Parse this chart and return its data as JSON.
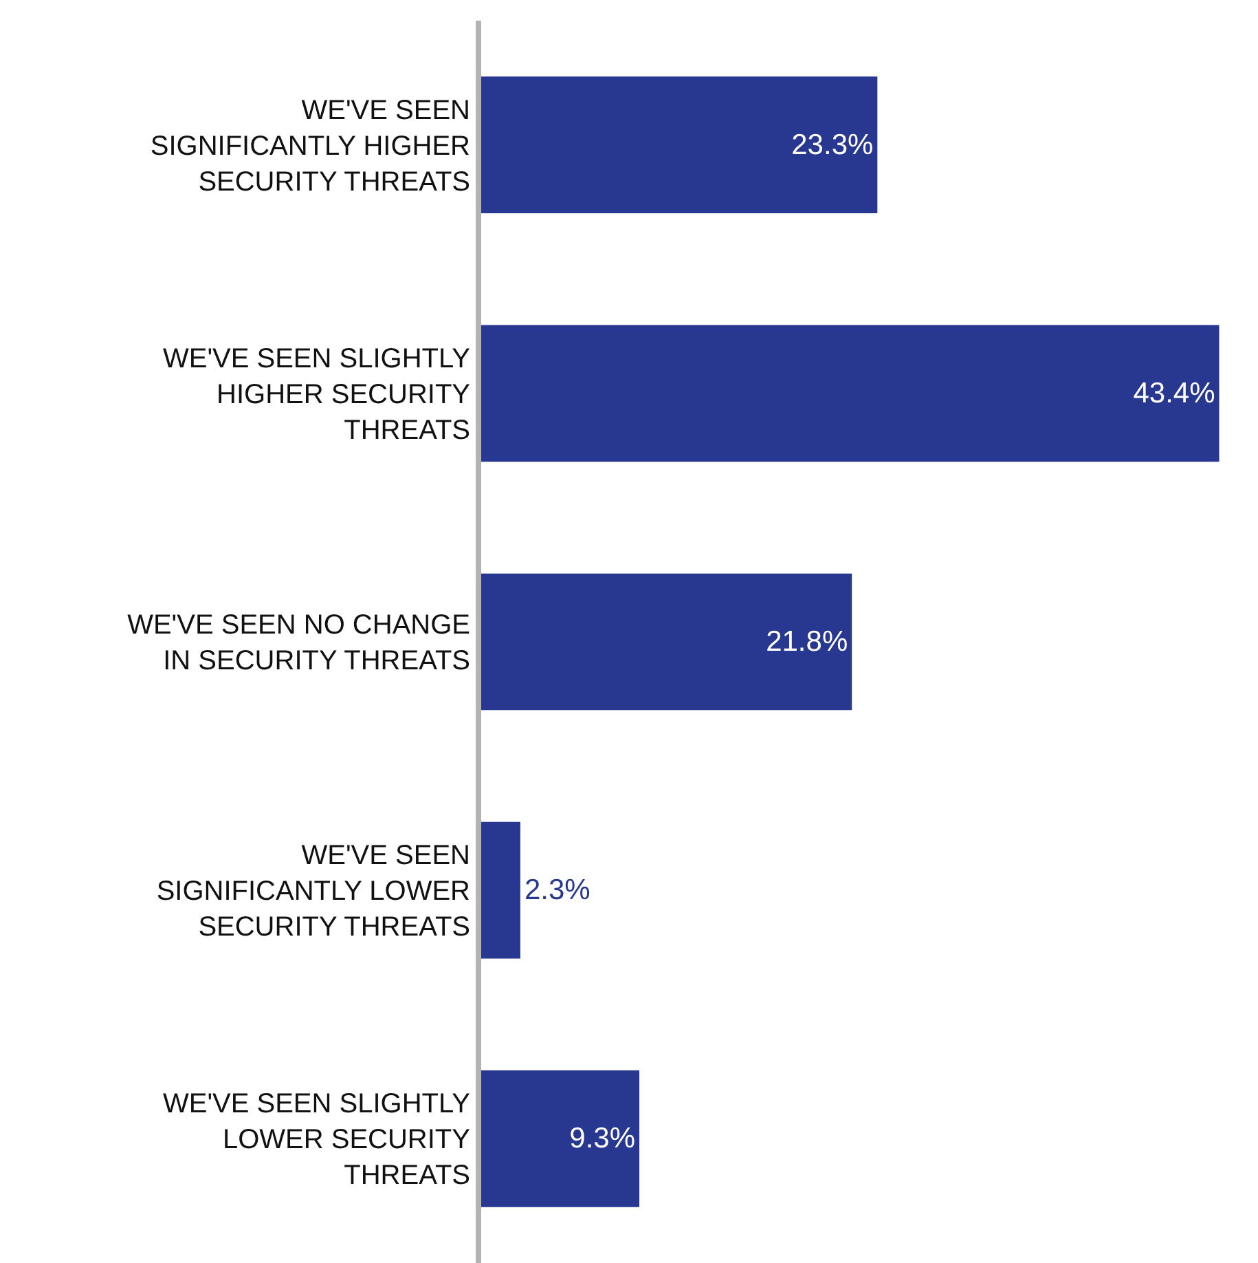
{
  "chart_data": {
    "type": "bar",
    "orientation": "horizontal",
    "categories": [
      "WE'VE SEEN SIGNIFICANTLY HIGHER SECURITY THREATS",
      "WE'VE SEEN SLIGHTLY HIGHER SECURITY THREATS",
      "WE'VE SEEN NO CHANGE IN SECURITY THREATS",
      "WE'VE SEEN SIGNIFICANTLY LOWER SECURITY THREATS",
      "WE'VE SEEN SLIGHTLY LOWER SECURITY THREATS"
    ],
    "values": [
      23.3,
      43.4,
      21.8,
      2.3,
      9.3
    ],
    "value_labels": [
      "23.3%",
      "43.4%",
      "21.8%",
      "2.3%",
      "9.3%"
    ],
    "color": "#283891"
  }
}
